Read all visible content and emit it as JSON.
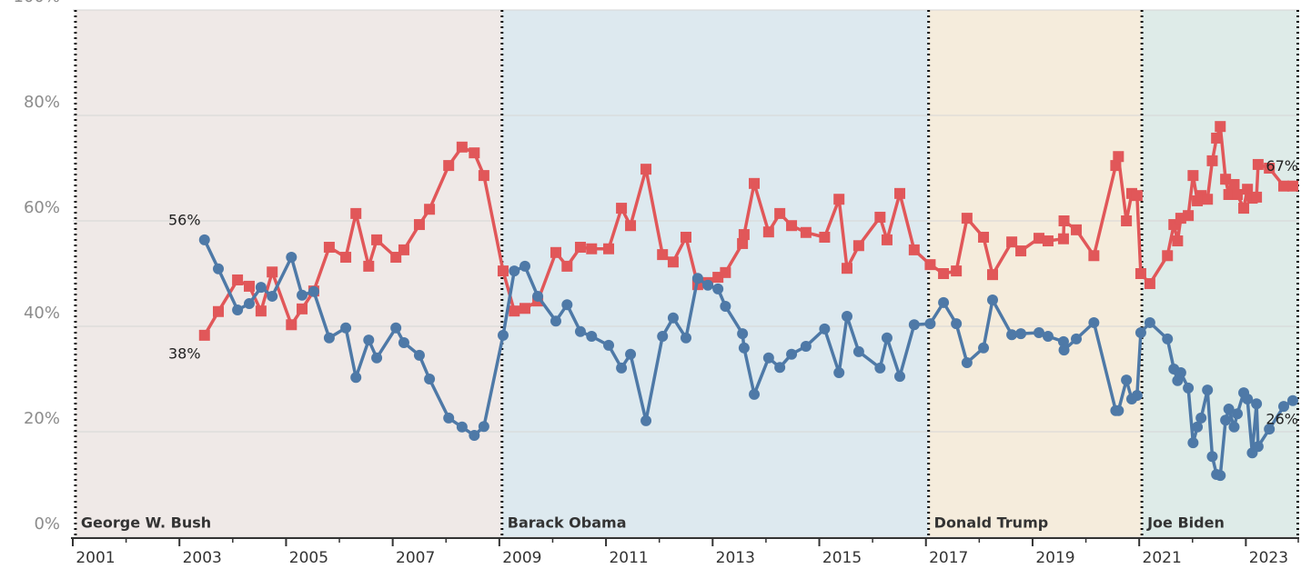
{
  "chart_data": {
    "type": "line",
    "xlim": [
      2001,
      2024
    ],
    "xticks": [
      2001,
      2003,
      2005,
      2007,
      2009,
      2011,
      2013,
      2015,
      2017,
      2019,
      2021,
      2023
    ],
    "xticks_minor": [
      2002,
      2004,
      2006,
      2008,
      2010,
      2012,
      2014,
      2016,
      2018,
      2020,
      2022,
      2024
    ],
    "ylim": [
      0,
      100
    ],
    "yticks": [
      {
        "value": 0,
        "label": "0%"
      },
      {
        "value": 20,
        "label": "20%"
      },
      {
        "value": 40,
        "label": "40%"
      },
      {
        "value": 60,
        "label": "60%"
      },
      {
        "value": 80,
        "label": "80%"
      },
      {
        "value": 100,
        "label": "100%"
      }
    ],
    "grid": true,
    "regions": [
      {
        "label": "George W. Bush",
        "start": 2001.05,
        "end": 2009.05,
        "color": "#efe9e7"
      },
      {
        "label": "Barack Obama",
        "start": 2009.05,
        "end": 2017.05,
        "color": "#dde9ef"
      },
      {
        "label": "Donald Trump",
        "start": 2017.05,
        "end": 2021.05,
        "color": "#f5ecdc"
      },
      {
        "label": "Joe Biden",
        "start": 2021.05,
        "end": 2024,
        "color": "#deebe8"
      }
    ],
    "x": [
      2003.47,
      2003.73,
      2004.09,
      2004.31,
      2004.53,
      2004.74,
      2005.1,
      2005.3,
      2005.52,
      2005.81,
      2006.12,
      2006.31,
      2006.55,
      2006.7,
      2007.06,
      2007.21,
      2007.5,
      2007.69,
      2008.05,
      2008.3,
      2008.53,
      2008.71,
      2009.07,
      2009.28,
      2009.48,
      2009.72,
      2010.06,
      2010.27,
      2010.52,
      2010.73,
      2011.05,
      2011.29,
      2011.46,
      2011.75,
      2012.06,
      2012.26,
      2012.5,
      2012.72,
      2012.91,
      2013.1,
      2013.24,
      2013.56,
      2013.59,
      2013.78,
      2014.05,
      2014.26,
      2014.48,
      2014.75,
      2015.1,
      2015.37,
      2015.52,
      2015.74,
      2016.14,
      2016.27,
      2016.51,
      2016.78,
      2017.08,
      2017.33,
      2017.57,
      2017.77,
      2018.08,
      2018.25,
      2018.61,
      2018.78,
      2019.12,
      2019.29,
      2019.58,
      2019.59,
      2019.82,
      2020.15,
      2020.56,
      2020.61,
      2020.76,
      2020.86,
      2020.96,
      2021.03,
      2021.2,
      2021.53,
      2021.65,
      2021.72,
      2021.78,
      2021.92,
      2022.01,
      2022.09,
      2022.16,
      2022.28,
      2022.37,
      2022.45,
      2022.52,
      2022.62,
      2022.68,
      2022.78,
      2022.84,
      2022.96,
      2023.03,
      2023.12,
      2023.2,
      2023.23,
      2023.44,
      2023.71,
      2023.88
    ],
    "series": [
      {
        "color": "#e15759",
        "marker": "square",
        "values": [
          38.3,
          42.8,
          48.8,
          47.6,
          42.9,
          50.3,
          40.3,
          43.3,
          46.7,
          55.0,
          53.1,
          61.4,
          51.4,
          56.4,
          53.1,
          54.5,
          59.3,
          62.2,
          70.5,
          74.0,
          72.9,
          68.6,
          50.5,
          42.9,
          43.4,
          44.8,
          54.0,
          51.4,
          55.0,
          54.7,
          54.7,
          62.4,
          59.1,
          69.8,
          53.6,
          52.2,
          56.9,
          47.9,
          48.3,
          49.3,
          50.2,
          55.7,
          57.4,
          67.1,
          57.9,
          61.4,
          59.1,
          57.8,
          56.9,
          64.1,
          51.0,
          55.3,
          60.7,
          56.4,
          65.2,
          54.5,
          51.7,
          50.0,
          50.5,
          60.5,
          56.9,
          49.8,
          56.0,
          54.3,
          56.7,
          56.2,
          56.6,
          60.0,
          58.3,
          53.4,
          70.5,
          72.2,
          60.0,
          65.2,
          64.8,
          50.0,
          48.1,
          53.4,
          59.3,
          56.2,
          60.5,
          61.0,
          68.6,
          63.8,
          64.8,
          64.1,
          71.4,
          75.7,
          77.9,
          67.9,
          65.0,
          66.9,
          65.0,
          62.4,
          66.0,
          64.3,
          64.5,
          70.7,
          70.0,
          66.6,
          66.6
        ],
        "value_labels": [
          "38%",
          null,
          null,
          null,
          null,
          null,
          null,
          null,
          null,
          null,
          null,
          null,
          null,
          null,
          null,
          null,
          null,
          null,
          null,
          null,
          null,
          null,
          null,
          null,
          null,
          null,
          null,
          null,
          null,
          null,
          null,
          null,
          null,
          null,
          null,
          null,
          null,
          null,
          null,
          null,
          null,
          null,
          null,
          null,
          null,
          null,
          null,
          null,
          null,
          null,
          null,
          null,
          null,
          null,
          null,
          null,
          null,
          null,
          null,
          null,
          null,
          null,
          null,
          null,
          null,
          null,
          null,
          null,
          null,
          null,
          null,
          null,
          null,
          null,
          null,
          null,
          null,
          null,
          null,
          null,
          null,
          null,
          null,
          null,
          null,
          null,
          null,
          null,
          null,
          null,
          null,
          null,
          null,
          null,
          null,
          null,
          null,
          null,
          null,
          null,
          "67%"
        ]
      },
      {
        "color": "#4e79a7",
        "marker": "circle",
        "values": [
          56.4,
          50.9,
          43.1,
          44.3,
          47.4,
          45.7,
          53.1,
          45.9,
          46.6,
          37.8,
          39.7,
          30.3,
          37.4,
          34.0,
          39.7,
          36.9,
          34.5,
          30.0,
          22.6,
          20.9,
          19.3,
          21.0,
          38.3,
          50.5,
          51.4,
          45.7,
          41.0,
          44.1,
          39.0,
          38.1,
          36.4,
          32.1,
          34.7,
          22.1,
          38.1,
          41.6,
          37.8,
          49.1,
          47.8,
          47.1,
          43.8,
          38.6,
          35.9,
          27.1,
          34.0,
          32.2,
          34.7,
          36.2,
          39.5,
          31.2,
          41.9,
          35.2,
          32.1,
          37.8,
          30.5,
          40.3,
          40.5,
          44.5,
          40.5,
          33.1,
          35.9,
          45.0,
          38.4,
          38.6,
          38.8,
          38.1,
          37.1,
          35.5,
          37.6,
          40.7,
          24.0,
          24.0,
          29.8,
          26.2,
          26.9,
          38.8,
          40.7,
          37.6,
          31.9,
          29.7,
          31.2,
          28.3,
          17.9,
          20.9,
          22.6,
          27.9,
          15.3,
          11.9,
          11.7,
          22.2,
          24.3,
          20.9,
          23.4,
          27.4,
          26.2,
          16.0,
          25.3,
          17.2,
          20.5,
          24.8,
          25.9
        ],
        "value_labels": [
          "56%",
          null,
          null,
          null,
          null,
          null,
          null,
          null,
          null,
          null,
          null,
          null,
          null,
          null,
          null,
          null,
          null,
          null,
          null,
          null,
          null,
          null,
          null,
          null,
          null,
          null,
          null,
          null,
          null,
          null,
          null,
          null,
          null,
          null,
          null,
          null,
          null,
          null,
          null,
          null,
          null,
          null,
          null,
          null,
          null,
          null,
          null,
          null,
          null,
          null,
          null,
          null,
          null,
          null,
          null,
          null,
          null,
          null,
          null,
          null,
          null,
          null,
          null,
          null,
          null,
          null,
          null,
          null,
          null,
          null,
          null,
          null,
          null,
          null,
          null,
          null,
          null,
          null,
          null,
          null,
          null,
          null,
          null,
          null,
          null,
          null,
          null,
          null,
          null,
          null,
          null,
          null,
          null,
          null,
          null,
          null,
          null,
          null,
          null,
          null,
          "26%"
        ]
      }
    ]
  }
}
